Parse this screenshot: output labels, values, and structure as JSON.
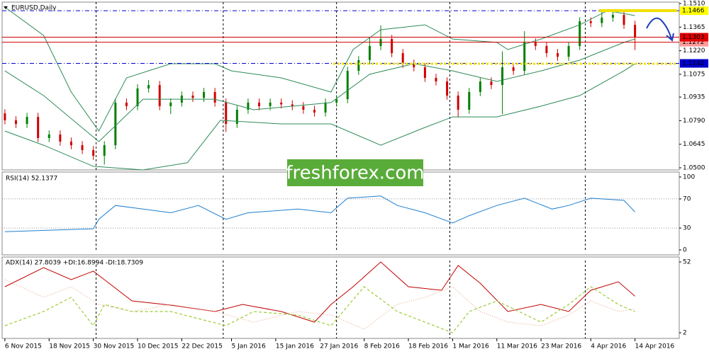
{
  "chart_data": [
    {
      "type": "candlestick",
      "title": "EURUSD,Daily",
      "xlim": [
        -0.5,
        122
      ],
      "ylim": [
        1.05,
        1.151
      ],
      "yticks": [
        {
          "value": 1.151,
          "label": "1.1510"
        },
        1.1365,
        {
          "value": 1.122,
          "label": "1.1220"
        },
        1.1075,
        1.0935,
        {
          "value": 1.079,
          "label": "1.0790"
        },
        1.0645,
        {
          "value": 1.05,
          "label": "1.0500"
        }
      ],
      "up_color": "#008000",
      "down_color": "#d00000",
      "x": [
        0,
        2,
        4,
        6,
        8,
        10,
        12,
        14,
        16,
        18,
        20,
        22,
        24,
        26,
        28,
        30,
        32,
        34,
        36,
        38,
        40,
        42,
        44,
        46,
        48,
        50,
        52,
        54,
        56,
        58,
        60,
        62,
        64,
        66,
        68,
        70,
        72,
        74,
        76,
        78,
        80,
        82,
        84,
        86,
        88,
        90,
        92,
        94,
        96,
        98,
        100,
        102,
        104,
        106,
        108,
        110,
        112,
        114
      ],
      "open": [
        1.0835,
        1.0792,
        1.077,
        1.0813,
        1.0683,
        1.0705,
        1.0661,
        1.0639,
        1.0609,
        1.0574,
        1.0639,
        1.0901,
        1.0879,
        1.0988,
        1.1009,
        1.0879,
        1.0901,
        1.0944,
        1.093,
        1.0966,
        1.0901,
        1.077,
        1.0857,
        1.0901,
        1.0879,
        1.0901,
        1.089,
        1.0879,
        1.0857,
        1.084,
        1.0901,
        1.0922,
        1.1096,
        1.1162,
        1.1249,
        1.1292,
        1.1205,
        1.114,
        1.1118,
        1.1053,
        1.1031,
        1.0944,
        1.0857,
        1.0966,
        1.1031,
        1.1009,
        1.1118,
        1.1096,
        1.1271,
        1.1249,
        1.1205,
        1.1183,
        1.1249,
        1.1401,
        1.139,
        1.1423,
        1.144,
        1.1379
      ],
      "high": [
        1.086,
        1.0817,
        1.0838,
        1.0838,
        1.073,
        1.073,
        1.0686,
        1.0664,
        1.0634,
        1.0664,
        1.0926,
        1.0926,
        1.1013,
        1.104,
        1.1034,
        1.0926,
        1.0969,
        1.0969,
        1.0991,
        1.0991,
        1.0926,
        1.0882,
        1.0926,
        1.0926,
        1.0926,
        1.0926,
        1.0915,
        1.0904,
        1.0882,
        1.0926,
        1.0947,
        1.1121,
        1.1187,
        1.13,
        1.1376,
        1.1317,
        1.123,
        1.1165,
        1.1143,
        1.1078,
        1.1056,
        1.0969,
        1.0991,
        1.1056,
        1.1056,
        1.1216,
        1.1143,
        1.134,
        1.1296,
        1.1274,
        1.123,
        1.1274,
        1.1426,
        1.1426,
        1.1465,
        1.1465,
        1.1465,
        1.1404
      ],
      "low": [
        1.0767,
        1.0745,
        1.0745,
        1.0658,
        1.0658,
        1.0636,
        1.0614,
        1.0584,
        1.0549,
        1.052,
        1.0614,
        1.0854,
        1.0854,
        1.0963,
        1.0854,
        1.083,
        1.0876,
        1.0905,
        1.0905,
        1.0876,
        1.072,
        1.0745,
        1.0832,
        1.0854,
        1.0854,
        1.0865,
        1.0854,
        1.0832,
        1.0815,
        1.0815,
        1.0876,
        1.0897,
        1.1071,
        1.1137,
        1.1224,
        1.118,
        1.1115,
        1.1093,
        1.1028,
        1.1006,
        1.0919,
        1.081,
        1.0832,
        1.0941,
        1.0984,
        1.083,
        1.1071,
        1.1071,
        1.1224,
        1.118,
        1.1158,
        1.1158,
        1.1224,
        1.1365,
        1.1365,
        1.1398,
        1.1354,
        1.1224
      ],
      "close": [
        1.0792,
        1.077,
        1.0813,
        1.0683,
        1.0705,
        1.0661,
        1.0639,
        1.0609,
        1.0574,
        1.0639,
        1.0901,
        1.0879,
        1.0988,
        1.1009,
        1.0879,
        1.0901,
        1.0944,
        1.093,
        1.0966,
        1.0901,
        1.077,
        1.0857,
        1.0901,
        1.0879,
        1.0901,
        1.089,
        1.0879,
        1.0857,
        1.084,
        1.0901,
        1.0922,
        1.1096,
        1.1162,
        1.1249,
        1.1292,
        1.1205,
        1.114,
        1.1118,
        1.1053,
        1.1031,
        1.0944,
        1.0857,
        1.0966,
        1.1031,
        1.1009,
        1.1118,
        1.1096,
        1.1271,
        1.1249,
        1.1205,
        1.1183,
        1.1249,
        1.1401,
        1.139,
        1.1423,
        1.144,
        1.1379,
        1.1303
      ],
      "series": [
        {
          "color": "#2e8b57",
          "style": "solid",
          "x": [
            0,
            7,
            12,
            17,
            22,
            30,
            38,
            41,
            50,
            59,
            63,
            68,
            76,
            81,
            89,
            91,
            97,
            104,
            109,
            114
          ],
          "values": [
            1.1488,
            1.1314,
            1.0966,
            1.0726,
            1.1053,
            1.114,
            1.114,
            1.1096,
            1.1053,
            1.0966,
            1.1227,
            1.1349,
            1.1379,
            1.1292,
            1.1271,
            1.1227,
            1.1292,
            1.1379,
            1.1466,
            1.1436
          ]
        },
        {
          "color": "#2e8b57",
          "style": "solid",
          "x": [
            0,
            7,
            17,
            25,
            38,
            45,
            59,
            66,
            74,
            81,
            89,
            97,
            104,
            112,
            114
          ],
          "values": [
            1.1096,
            1.0944,
            1.0661,
            1.0922,
            1.0922,
            1.0857,
            1.0901,
            1.1075,
            1.114,
            1.1096,
            1.1031,
            1.1096,
            1.1162,
            1.1271,
            1.1292
          ]
        },
        {
          "color": "#2e8b57",
          "style": "solid",
          "x": [
            0,
            7,
            16,
            25,
            33,
            39,
            50,
            59,
            68,
            76,
            81,
            89,
            97,
            104,
            112,
            114
          ],
          "values": [
            1.0726,
            1.0639,
            1.0509,
            1.0487,
            1.0531,
            1.0792,
            1.077,
            1.077,
            1.0639,
            1.0748,
            1.0813,
            1.0813,
            1.0879,
            1.0944,
            1.1096,
            1.114
          ]
        }
      ],
      "levels": [
        {
          "value": 1.1466,
          "color": "#ffff00",
          "text_color": "#000000",
          "line_color": "#0000cd",
          "style": "dashdot"
        },
        {
          "value": 1.1272,
          "color": "#ff9a9a",
          "text_color": "#ffffff",
          "line_color": "#d00000",
          "style": "solid"
        },
        {
          "value": 1.1303,
          "color": "#e00000",
          "text_color": "#ffffff",
          "line_color": "#d00000",
          "style": "solid"
        },
        {
          "value": 1.1142,
          "color": "#0000cd",
          "text_color": "#ffffff",
          "line_color": "#0000cd",
          "style": "dashdot"
        }
      ],
      "separators": [
        16.5,
        39.5,
        60,
        80.5,
        105
      ]
    },
    {
      "type": "line",
      "title": "RSI(14) 52.1377",
      "xlim": [
        -0.5,
        122
      ],
      "ylim": [
        0,
        100
      ],
      "yticks": [
        100,
        70,
        30,
        0
      ],
      "grid_levels": [
        70,
        30
      ],
      "series": [
        {
          "color": "#1f7fd0",
          "style": "solid",
          "x": [
            0,
            16,
            17,
            20,
            25,
            30,
            35,
            40,
            44,
            53,
            59,
            62,
            68,
            71,
            76,
            81,
            84,
            89,
            94,
            99,
            102,
            106,
            112,
            114
          ],
          "values": [
            25,
            29,
            42,
            61,
            56,
            51,
            61,
            42,
            51,
            56,
            51,
            71,
            74,
            61,
            51,
            37,
            47,
            61,
            71,
            56,
            61,
            71,
            68,
            52.1377
          ]
        }
      ],
      "separators": [
        16.5,
        39.5,
        60,
        80.5,
        105
      ]
    },
    {
      "type": "line",
      "title": "ADX(14) 27.8039 +DI:16.8994 -DI:18.7309",
      "xlim": [
        -0.5,
        122
      ],
      "ylim": [
        2,
        52
      ],
      "yticks": [
        52,
        2
      ],
      "series": [
        {
          "color": "#c00000",
          "style": "solid",
          "x": [
            0,
            7,
            12,
            16,
            18,
            23,
            30,
            38,
            43,
            50,
            56,
            59,
            63,
            68,
            73,
            79,
            82,
            86,
            91,
            97,
            102,
            106,
            111,
            114
          ],
          "values": [
            34.5,
            48,
            39.5,
            45.5,
            39.5,
            24.5,
            21.5,
            17,
            22,
            17,
            9.5,
            22,
            34.5,
            52,
            34.5,
            32,
            49.5,
            37,
            17,
            22,
            17,
            32,
            38,
            27.8039
          ]
        },
        {
          "color": "#9acd32",
          "style": "dashed",
          "x": [
            0,
            7,
            12,
            16,
            18,
            23,
            30,
            40,
            45,
            53,
            59,
            65,
            71,
            76,
            81,
            84,
            89,
            97,
            102,
            106,
            111,
            114
          ],
          "values": [
            7,
            17,
            27,
            7,
            22,
            17,
            17,
            7,
            17,
            14.5,
            7,
            34.5,
            17,
            9.5,
            2,
            17,
            24.5,
            9.5,
            22,
            34.5,
            22,
            16.8994
          ]
        },
        {
          "color": "#e8b49a",
          "style": "dotted",
          "x": [
            0,
            7,
            12,
            17,
            23,
            30,
            38,
            45,
            53,
            59,
            65,
            71,
            76,
            81,
            86,
            91,
            97,
            102,
            106,
            111,
            114
          ],
          "values": [
            39.5,
            27,
            34.5,
            22,
            17,
            22,
            17,
            9.5,
            17,
            14.5,
            4.5,
            22,
            27,
            34.5,
            17,
            9.5,
            7,
            14.5,
            24.5,
            17,
            18.7309
          ]
        }
      ],
      "separators": [
        16.5,
        39.5,
        60,
        80.5,
        105
      ],
      "xticks": [
        {
          "value": 0,
          "label": "6 Nov 2015"
        },
        {
          "value": 8,
          "label": "18 Nov 2015"
        },
        {
          "value": 16,
          "label": "30 Nov 2015"
        },
        {
          "value": 24,
          "label": "10 Dec 2015"
        },
        {
          "value": 32,
          "label": "22 Dec 2015"
        },
        {
          "value": 41,
          "label": "5 Jan 2016"
        },
        {
          "value": 49,
          "label": "15 Jan 2016"
        },
        {
          "value": 57,
          "label": "27 Jan 2016"
        },
        {
          "value": 65,
          "label": "8 Feb 2016"
        },
        {
          "value": 73,
          "label": "18 Feb 2016"
        },
        {
          "value": 81,
          "label": "1 Mar 2016"
        },
        {
          "value": 89,
          "label": "11 Mar 2016"
        },
        {
          "value": 97,
          "label": "23 Mar 2016"
        },
        {
          "value": 106,
          "label": "4 Apr 2016"
        },
        {
          "value": 114,
          "label": "14 Apr 2016"
        }
      ]
    }
  ],
  "watermark": "freshforex.com"
}
